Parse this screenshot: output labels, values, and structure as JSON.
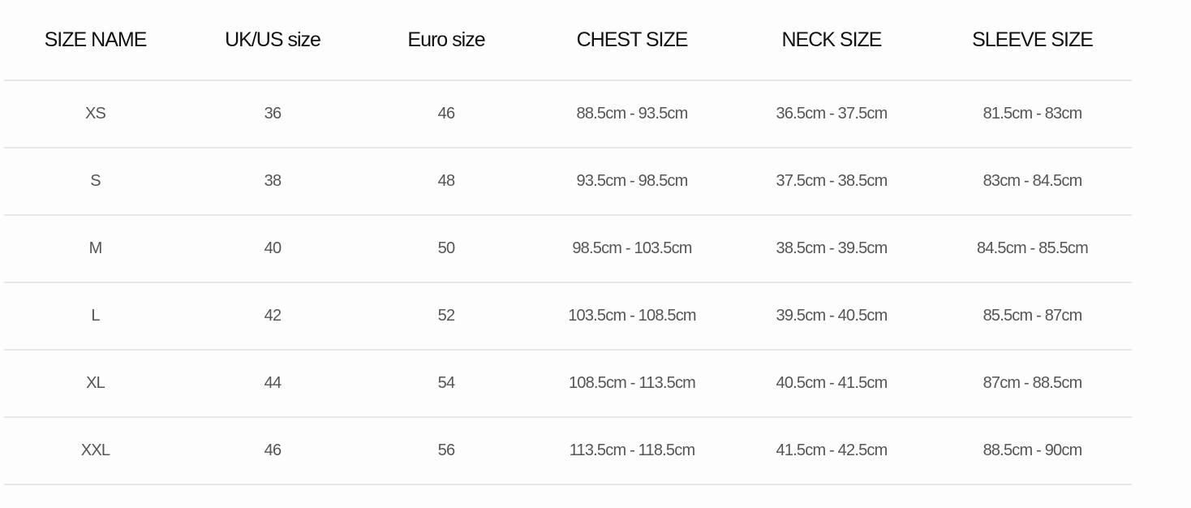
{
  "headers": [
    "SIZE NAME",
    "UK/US size",
    "Euro size",
    "CHEST SIZE",
    "NECK SIZE",
    "SLEEVE SIZE"
  ],
  "rows": [
    [
      "XS",
      "36",
      "46",
      "88.5cm - 93.5cm",
      "36.5cm - 37.5cm",
      "81.5cm - 83cm"
    ],
    [
      "S",
      "38",
      "48",
      "93.5cm - 98.5cm",
      "37.5cm - 38.5cm",
      "83cm - 84.5cm"
    ],
    [
      "M",
      "40",
      "50",
      "98.5cm - 103.5cm",
      "38.5cm - 39.5cm",
      "84.5cm - 85.5cm"
    ],
    [
      "L",
      "42",
      "52",
      "103.5cm - 108.5cm",
      "39.5cm - 40.5cm",
      "85.5cm - 87cm"
    ],
    [
      "XL",
      "44",
      "54",
      "108.5cm - 113.5cm",
      "40.5cm - 41.5cm",
      "87cm - 88.5cm"
    ],
    [
      "XXL",
      "46",
      "56",
      "113.5cm - 118.5cm",
      "41.5cm - 42.5cm",
      "88.5cm - 90cm"
    ]
  ]
}
